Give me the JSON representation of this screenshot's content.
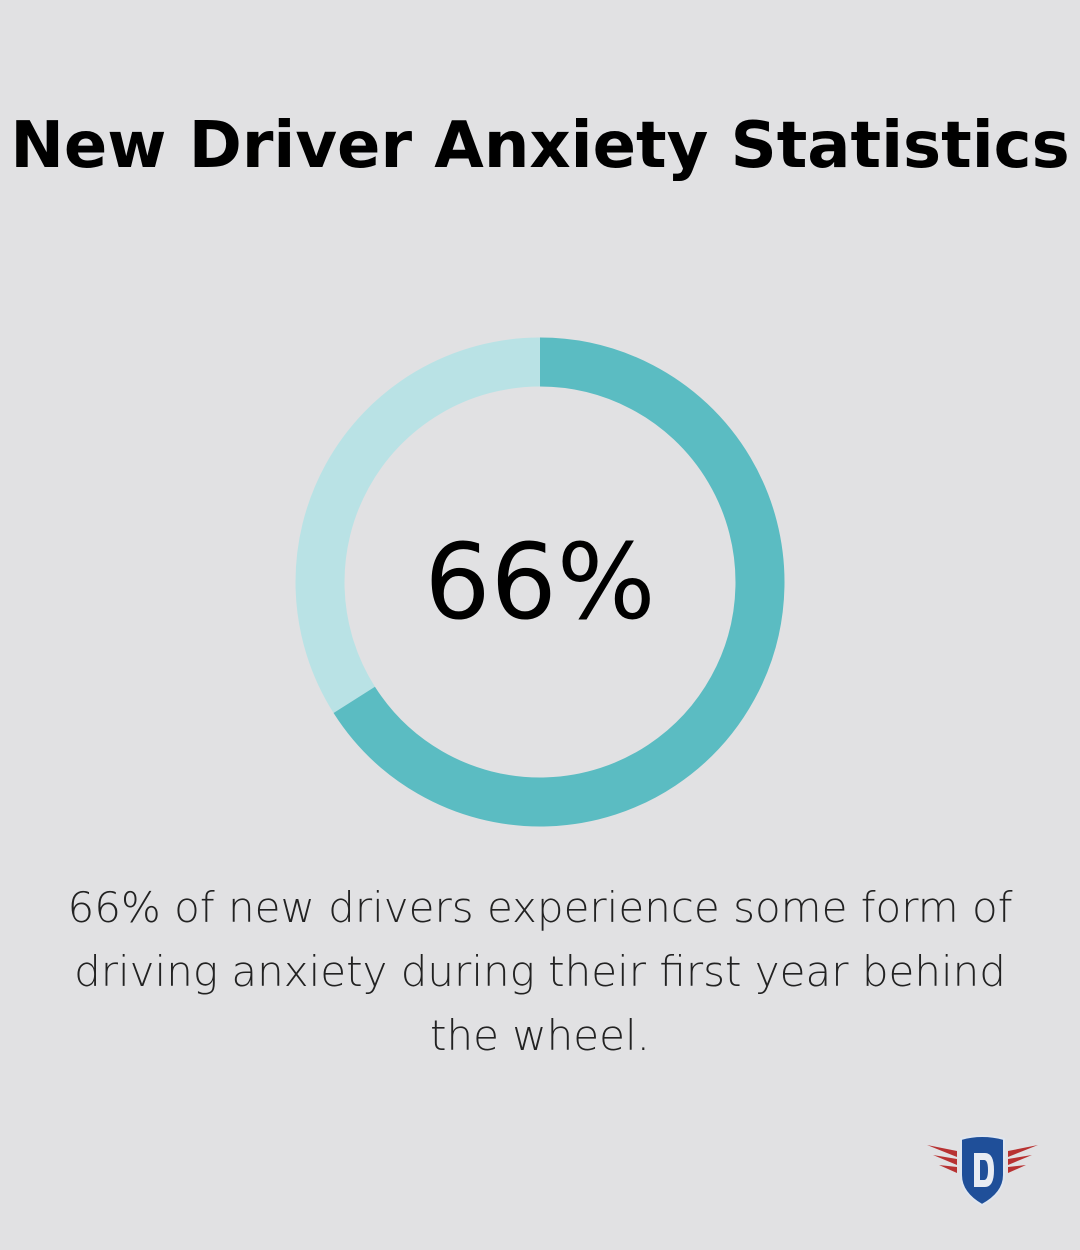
{
  "title": "New Driver Anxiety Statistics",
  "chart_data": {
    "type": "pie",
    "variant": "donut",
    "values": [
      66,
      34
    ],
    "colors": [
      "#5bbcc2",
      "#b9e2e5"
    ],
    "center_label": "66%"
  },
  "description": "66% of new drivers experience some form of driving anxiety during their first year behind the wheel.",
  "logo": {
    "text": "D",
    "colors": {
      "shield": "#1f4f99",
      "wings": "#b83232"
    }
  }
}
